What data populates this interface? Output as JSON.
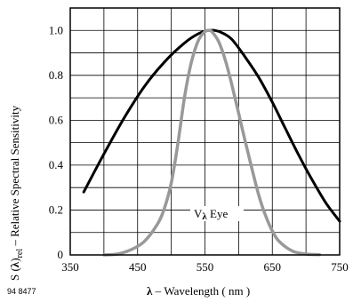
{
  "chart_data": {
    "type": "line",
    "code": "94 8477",
    "xlabel": {
      "symbol": "λ",
      "text": " – Wavelength ( nm )"
    },
    "ylabel": {
      "prefix": "S (",
      "symbol": "λ",
      "suffix": ")",
      "subscript": "rel",
      "text": " – Relative Spectral Sensitivity"
    },
    "xlim": [
      350,
      750
    ],
    "ylim": [
      0,
      1.1
    ],
    "x_ticks": [
      350,
      450,
      550,
      650,
      750
    ],
    "x_tick_labels": [
      "350",
      "450",
      "550",
      "650",
      "750"
    ],
    "y_ticks": [
      0,
      0.2,
      0.4,
      0.6,
      0.8,
      1.0
    ],
    "y_tick_labels": [
      "0",
      "0.2",
      "0.4",
      "0.6",
      "0.8",
      "1.0"
    ],
    "grid": true,
    "series": [
      {
        "color": "#000000",
        "x": [
          370,
          400,
          430,
          460,
          490,
          520,
          540,
          555,
          565,
          575,
          590,
          610,
          630,
          650,
          670,
          690,
          710,
          730,
          750
        ],
        "y": [
          0.28,
          0.45,
          0.61,
          0.75,
          0.86,
          0.945,
          0.985,
          1.0,
          1.0,
          0.99,
          0.96,
          0.88,
          0.79,
          0.68,
          0.56,
          0.44,
          0.33,
          0.23,
          0.15
        ]
      },
      {
        "name": "V",
        "name_symbol": "λ",
        "name_suffix": " Eye",
        "color": "#999999",
        "x": [
          400,
          420,
          440,
          460,
          480,
          490,
          500,
          510,
          520,
          530,
          540,
          550,
          555,
          560,
          570,
          580,
          590,
          600,
          610,
          620,
          630,
          640,
          650,
          660,
          680,
          700,
          720
        ],
        "y": [
          0.0,
          0.004,
          0.023,
          0.06,
          0.14,
          0.21,
          0.32,
          0.5,
          0.71,
          0.86,
          0.954,
          0.995,
          1.0,
          0.995,
          0.952,
          0.87,
          0.757,
          0.631,
          0.503,
          0.381,
          0.265,
          0.175,
          0.107,
          0.061,
          0.017,
          0.004,
          0.001
        ]
      }
    ]
  }
}
